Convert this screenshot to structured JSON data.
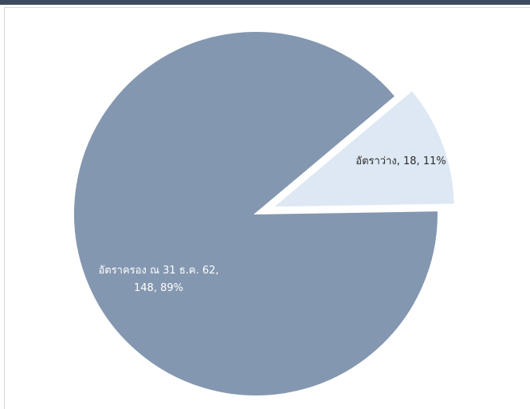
{
  "chart_data": {
    "type": "pie",
    "title": "",
    "slices": [
      {
        "name": "อัตราว่าง",
        "value": 18,
        "percent": "11%",
        "label_lines": [
          "อัตราว่าง, 18, 11%"
        ],
        "color": "#dde8f4",
        "exploded": true
      },
      {
        "name": "อัตราครอง ณ 31 ธ.ค. 62",
        "value": 148,
        "percent": "89%",
        "label_lines": [
          "อัตราครอง ณ 31 ธ.ค. 62,",
          "148, 89%"
        ],
        "color": "#8497b0",
        "exploded": false
      }
    ],
    "legend": "none"
  }
}
